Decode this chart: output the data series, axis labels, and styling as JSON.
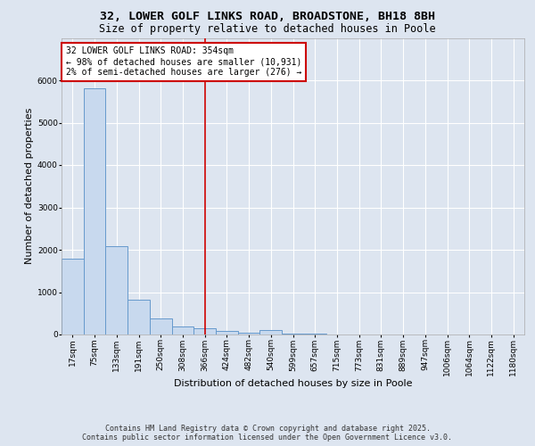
{
  "title_line1": "32, LOWER GOLF LINKS ROAD, BROADSTONE, BH18 8BH",
  "title_line2": "Size of property relative to detached houses in Poole",
  "xlabel": "Distribution of detached houses by size in Poole",
  "ylabel": "Number of detached properties",
  "bar_color": "#c8d9ee",
  "bar_edge_color": "#6699cc",
  "categories": [
    "17sqm",
    "75sqm",
    "133sqm",
    "191sqm",
    "250sqm",
    "308sqm",
    "366sqm",
    "424sqm",
    "482sqm",
    "540sqm",
    "599sqm",
    "657sqm",
    "715sqm",
    "773sqm",
    "831sqm",
    "889sqm",
    "947sqm",
    "1006sqm",
    "1064sqm",
    "1122sqm",
    "1180sqm"
  ],
  "values": [
    1780,
    5820,
    2080,
    830,
    370,
    200,
    155,
    85,
    45,
    105,
    28,
    18,
    8,
    4,
    2,
    1,
    1,
    0,
    0,
    0,
    0
  ],
  "ylim": [
    0,
    7000
  ],
  "yticks": [
    0,
    1000,
    2000,
    3000,
    4000,
    5000,
    6000
  ],
  "vline_x": 6.0,
  "vline_color": "#cc0000",
  "annotation_text": "32 LOWER GOLF LINKS ROAD: 354sqm\n← 98% of detached houses are smaller (10,931)\n2% of semi-detached houses are larger (276) →",
  "annotation_box_color": "#ffffff",
  "annotation_box_edge_color": "#cc0000",
  "background_color": "#dde5f0",
  "plot_background": "#dde5f0",
  "grid_color": "#ffffff",
  "title_fontsize": 9.5,
  "subtitle_fontsize": 8.5,
  "axis_fontsize": 8,
  "tick_fontsize": 6.5,
  "annotation_fontsize": 7,
  "footer_line1": "Contains HM Land Registry data © Crown copyright and database right 2025.",
  "footer_line2": "Contains public sector information licensed under the Open Government Licence v3.0."
}
